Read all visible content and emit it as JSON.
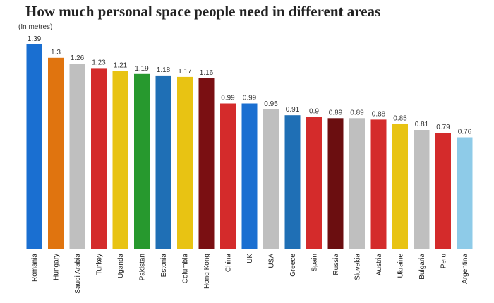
{
  "chart_data": {
    "type": "bar",
    "title": "How much personal space people need in different areas",
    "unit_label": "(In metres)",
    "xlabel": "",
    "ylabel": "",
    "ylim": [
      0,
      1.4
    ],
    "grid": false,
    "legend": "none",
    "categories": [
      "Romania",
      "Hungary",
      "Saudi Arabia",
      "Turkey",
      "Uganda",
      "Pakistan",
      "Estonia",
      "Columbia",
      "Hong Kong",
      "China",
      "UK",
      "USA",
      "Greece",
      "Spain",
      "Russia",
      "Slovakia",
      "Austria",
      "Ukraine",
      "Bulgaria",
      "Peru",
      "Argentina"
    ],
    "values": [
      1.39,
      1.3,
      1.26,
      1.23,
      1.21,
      1.19,
      1.18,
      1.17,
      1.16,
      0.99,
      0.99,
      0.95,
      0.91,
      0.9,
      0.89,
      0.89,
      0.88,
      0.85,
      0.81,
      0.79,
      0.76
    ],
    "value_labels": [
      "1.39",
      "1.3",
      "1.26",
      "1.23",
      "1.21",
      "1.19",
      "1.18",
      "1.17",
      "1.16",
      "0.99",
      "0.99",
      "0.95",
      "0.91",
      "0.9",
      "0.89",
      "0.89",
      "0.88",
      "0.85",
      "0.81",
      "0.79",
      "0.76"
    ],
    "colors": [
      "#1a6fd1",
      "#e0740f",
      "#bfbfbf",
      "#d42b2b",
      "#e8c313",
      "#27992e",
      "#1f6fb5",
      "#e8c313",
      "#7a0f12",
      "#d42b2b",
      "#1a6fd1",
      "#bfbfbf",
      "#1f6fb5",
      "#d42b2b",
      "#6b0e10",
      "#bfbfbf",
      "#d42b2b",
      "#e8c313",
      "#bfbfbf",
      "#d42b2b",
      "#8ecbe8"
    ]
  }
}
